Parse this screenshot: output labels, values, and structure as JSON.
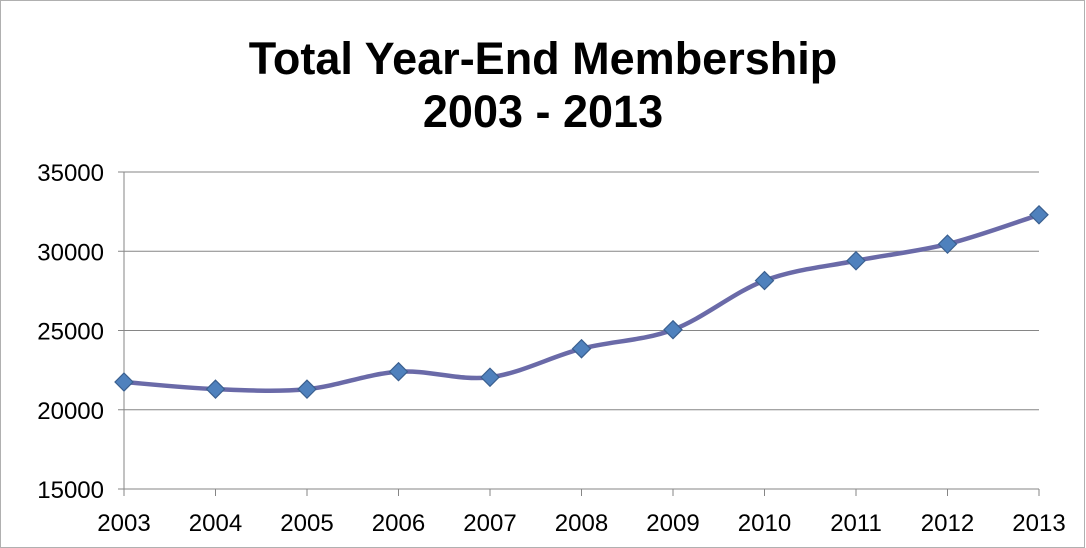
{
  "chart_data": {
    "type": "line",
    "title_lines": [
      "Total Year-End Membership",
      "2003 - 2013"
    ],
    "categories": [
      "2003",
      "2004",
      "2005",
      "2006",
      "2007",
      "2008",
      "2009",
      "2010",
      "2011",
      "2012",
      "2013"
    ],
    "series": [
      {
        "values": [
          21750,
          21300,
          21300,
          22400,
          22050,
          23850,
          25050,
          28150,
          29400,
          30450,
          32300
        ],
        "color": "#6a6aa8",
        "marker": "diamond",
        "marker_color": "#4f81bd",
        "smooth": true
      }
    ],
    "ylim": [
      15000,
      35000
    ],
    "yticks": [
      15000,
      20000,
      25000,
      30000,
      35000
    ],
    "xlabel": "",
    "ylabel": "",
    "grid": "horizontal",
    "legend": "none"
  }
}
